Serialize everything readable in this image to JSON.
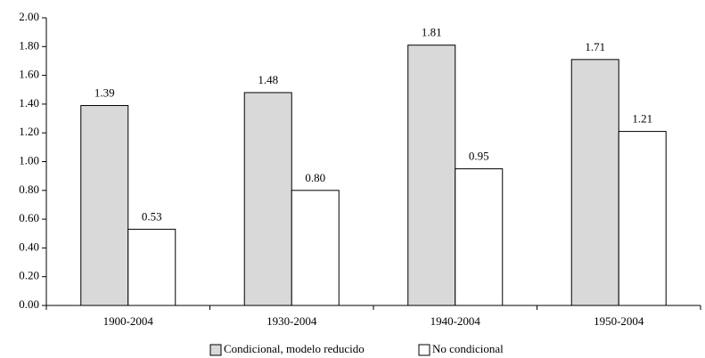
{
  "chart_data": {
    "type": "bar",
    "categories": [
      "1900-2004",
      "1930-2004",
      "1940-2004",
      "1950-2004"
    ],
    "series": [
      {
        "name": "Condicional, modelo reducido",
        "color": "#d9d9d9",
        "values": [
          1.39,
          1.48,
          1.81,
          1.71
        ],
        "value_labels": [
          "1.39",
          "1.48",
          "1.81",
          "1.71"
        ]
      },
      {
        "name": "No condicional",
        "color": "#ffffff",
        "values": [
          0.53,
          0.8,
          0.95,
          1.21
        ],
        "value_labels": [
          "0.53",
          "0.80",
          "0.95",
          "1.21"
        ]
      }
    ],
    "ylim": [
      0,
      2
    ],
    "yticks": [
      {
        "value": 0,
        "label": "0.00"
      },
      {
        "value": 0.2,
        "label": "0.20"
      },
      {
        "value": 0.4,
        "label": "0.40"
      },
      {
        "value": 0.6,
        "label": "0.60"
      },
      {
        "value": 0.8,
        "label": "0.80"
      },
      {
        "value": 1.0,
        "label": "1.00"
      },
      {
        "value": 1.2,
        "label": "1.20"
      },
      {
        "value": 1.4,
        "label": "1.40"
      },
      {
        "value": 1.6,
        "label": "1.60"
      },
      {
        "value": 1.8,
        "label": "1.80"
      },
      {
        "value": 2.0,
        "label": "2.00"
      }
    ],
    "grid": false,
    "legend": "bottom"
  }
}
